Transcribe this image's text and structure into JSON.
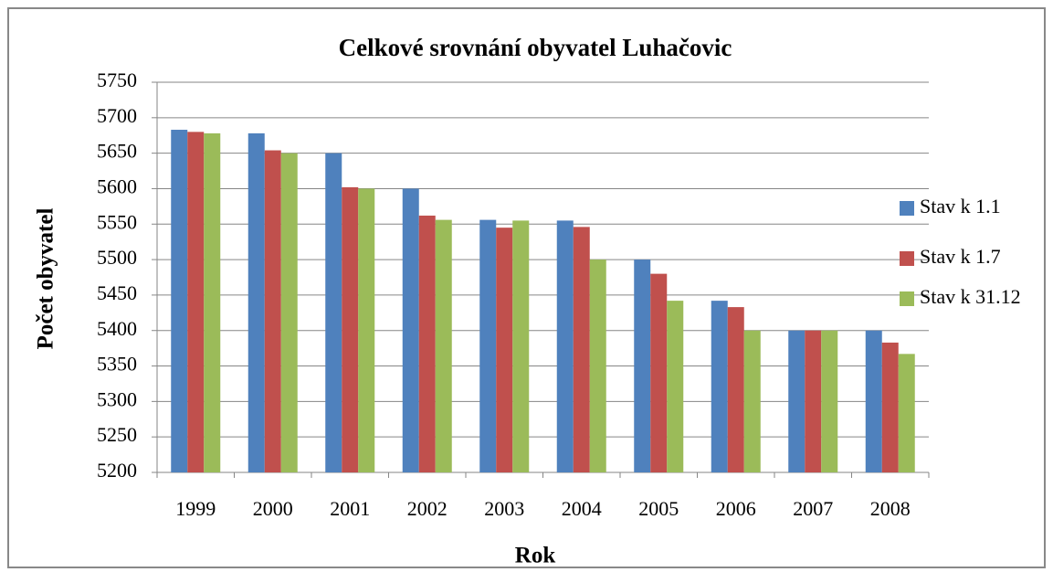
{
  "chart_data": {
    "type": "bar",
    "title": "Celkové srovnání obyvatel Luhačovic",
    "x_label": "Rok",
    "y_label": "Počet obyvatel",
    "categories": [
      "1999",
      "2000",
      "2001",
      "2002",
      "2003",
      "2004",
      "2005",
      "2006",
      "2007",
      "2008"
    ],
    "series": [
      {
        "name": "Stav k 1.1",
        "color": "#4f81bd",
        "values": [
          5683,
          5678,
          5650,
          5600,
          5556,
          5555,
          5500,
          5442,
          5400,
          5400
        ]
      },
      {
        "name": "Stav k 1.7",
        "color": "#c0504d",
        "values": [
          5680,
          5654,
          5602,
          5562,
          5545,
          5546,
          5480,
          5433,
          5400,
          5383
        ]
      },
      {
        "name": "Stav k 31.12",
        "color": "#9bbb59",
        "values": [
          5678,
          5650,
          5600,
          5556,
          5555,
          5500,
          5442,
          5400,
          5400,
          5367
        ]
      }
    ],
    "ylim": [
      5200,
      5750
    ],
    "yticks": [
      5200,
      5250,
      5300,
      5350,
      5400,
      5450,
      5500,
      5550,
      5600,
      5650,
      5700,
      5750
    ],
    "grid": true,
    "legend": "right"
  }
}
